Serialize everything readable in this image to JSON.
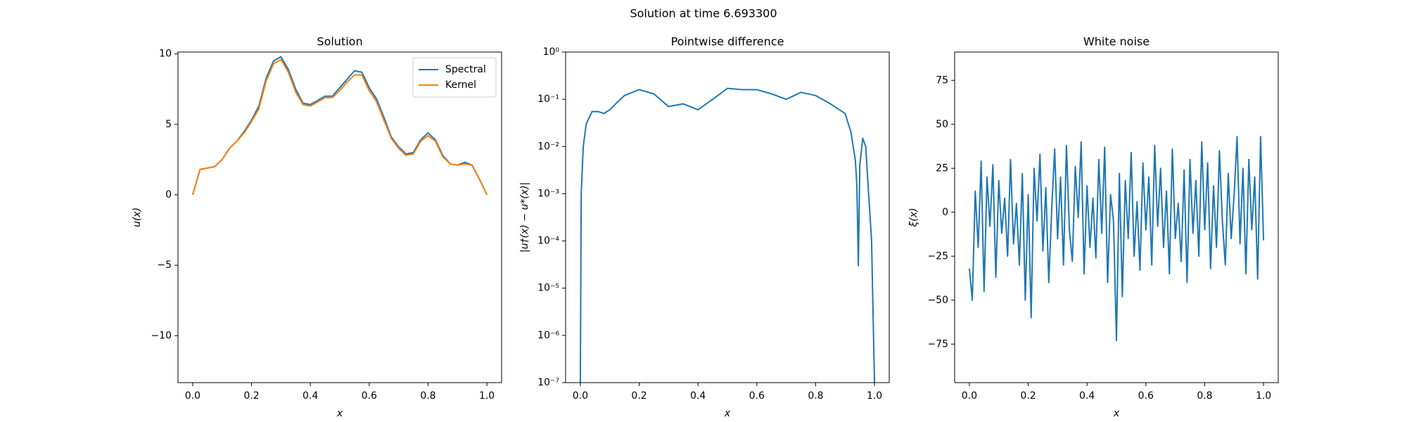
{
  "title": "Solution at time 6.693300",
  "chart_data": [
    {
      "type": "line",
      "title": "Solution",
      "x_label": "x",
      "y_label": "u(x)",
      "x": [
        0,
        0.025,
        0.05,
        0.075,
        0.1,
        0.125,
        0.15,
        0.175,
        0.2,
        0.225,
        0.25,
        0.275,
        0.3,
        0.325,
        0.35,
        0.375,
        0.4,
        0.425,
        0.45,
        0.475,
        0.5,
        0.525,
        0.55,
        0.575,
        0.6,
        0.625,
        0.65,
        0.675,
        0.7,
        0.725,
        0.75,
        0.775,
        0.8,
        0.825,
        0.85,
        0.875,
        0.9,
        0.925,
        0.95,
        0.975,
        1.0
      ],
      "series": [
        {
          "name": "Spectral",
          "color": "#1f77b4",
          "values": [
            0,
            1.8,
            1.9,
            2.0,
            2.5,
            3.3,
            3.8,
            4.5,
            5.3,
            6.3,
            8.3,
            9.5,
            9.8,
            8.9,
            7.5,
            6.5,
            6.4,
            6.7,
            7.0,
            7.0,
            7.6,
            8.2,
            8.8,
            8.7,
            7.6,
            6.8,
            5.5,
            4.1,
            3.4,
            2.9,
            3.0,
            3.9,
            4.4,
            3.9,
            2.8,
            2.2,
            2.1,
            2.3,
            2.1,
            1.1,
            0
          ]
        },
        {
          "name": "Kernel",
          "color": "#ff7f0e",
          "values": [
            0,
            1.8,
            1.9,
            2.0,
            2.5,
            3.3,
            3.8,
            4.4,
            5.2,
            6.1,
            8.1,
            9.3,
            9.6,
            8.7,
            7.3,
            6.4,
            6.3,
            6.6,
            6.9,
            6.9,
            7.4,
            8.0,
            8.5,
            8.5,
            7.4,
            6.6,
            5.3,
            4.0,
            3.3,
            2.8,
            2.9,
            3.8,
            4.2,
            3.8,
            2.7,
            2.2,
            2.1,
            2.2,
            2.1,
            1.1,
            0
          ]
        }
      ],
      "xlim": [
        -0.05,
        1.05
      ],
      "ylim": [
        -13.33,
        10.13
      ],
      "xticks": [
        {
          "value": 0,
          "label": "0.0"
        },
        0.2,
        0.4,
        0.6,
        0.8,
        {
          "value": 1,
          "label": "1.0"
        }
      ],
      "yticks": [
        {
          "value": -10,
          "label": "−10"
        },
        {
          "value": -5,
          "label": "−5"
        },
        0,
        5,
        10
      ],
      "legend": "upper right",
      "grid": false
    },
    {
      "type": "line",
      "title": "Pointwise difference",
      "x_label": "x",
      "y_label": "|u†(x) − u*(x)|",
      "log_y": true,
      "x": [
        0,
        0.003,
        0.01,
        0.02,
        0.04,
        0.06,
        0.08,
        0.1,
        0.12,
        0.15,
        0.2,
        0.25,
        0.3,
        0.35,
        0.4,
        0.45,
        0.5,
        0.55,
        0.6,
        0.65,
        0.7,
        0.75,
        0.8,
        0.85,
        0.9,
        0.92,
        0.935,
        0.94,
        0.945,
        0.95,
        0.96,
        0.97,
        0.98,
        0.99,
        0.995,
        1.0
      ],
      "values": [
        1e-07,
        0.001,
        0.01,
        0.03,
        0.055,
        0.055,
        0.05,
        0.06,
        0.08,
        0.12,
        0.16,
        0.13,
        0.07,
        0.08,
        0.06,
        0.1,
        0.17,
        0.16,
        0.16,
        0.13,
        0.1,
        0.14,
        0.12,
        0.08,
        0.05,
        0.02,
        0.005,
        0.0015,
        3e-05,
        0.004,
        0.015,
        0.01,
        0.001,
        0.0001,
        3e-06,
        1e-07
      ],
      "color": "#1f77b4",
      "xlim": [
        -0.05,
        1.05
      ],
      "ylim": [
        1e-07,
        1
      ],
      "xticks": [
        {
          "value": 0,
          "label": "0.0"
        },
        0.2,
        0.4,
        0.6,
        0.8,
        {
          "value": 1,
          "label": "1.0"
        }
      ],
      "yticks": [
        {
          "value": 1e-07,
          "label": "10⁻⁷"
        },
        {
          "value": 1e-06,
          "label": "10⁻⁶"
        },
        {
          "value": 1e-05,
          "label": "10⁻⁵"
        },
        {
          "value": 0.0001,
          "label": "10⁻⁴"
        },
        {
          "value": 0.001,
          "label": "10⁻³"
        },
        {
          "value": 0.01,
          "label": "10⁻²"
        },
        {
          "value": 0.1,
          "label": "10⁻¹"
        },
        {
          "value": 1,
          "label": "10⁰"
        }
      ],
      "grid": false
    },
    {
      "type": "line",
      "title": "White noise",
      "x_label": "x",
      "y_label": "ξ(x)",
      "x": [
        0,
        0.01,
        0.02,
        0.03,
        0.04,
        0.05,
        0.06,
        0.07,
        0.08,
        0.09,
        0.1,
        0.11,
        0.12,
        0.13,
        0.14,
        0.15,
        0.16,
        0.17,
        0.18,
        0.19,
        0.2,
        0.21,
        0.22,
        0.23,
        0.24,
        0.25,
        0.26,
        0.27,
        0.28,
        0.29,
        0.3,
        0.31,
        0.32,
        0.33,
        0.34,
        0.35,
        0.36,
        0.37,
        0.38,
        0.39,
        0.4,
        0.41,
        0.42,
        0.43,
        0.44,
        0.45,
        0.46,
        0.47,
        0.48,
        0.49,
        0.5,
        0.51,
        0.52,
        0.53,
        0.54,
        0.55,
        0.56,
        0.57,
        0.58,
        0.59,
        0.6,
        0.61,
        0.62,
        0.63,
        0.64,
        0.65,
        0.66,
        0.67,
        0.68,
        0.69,
        0.7,
        0.71,
        0.72,
        0.73,
        0.74,
        0.75,
        0.76,
        0.77,
        0.78,
        0.79,
        0.8,
        0.81,
        0.82,
        0.83,
        0.84,
        0.85,
        0.86,
        0.87,
        0.88,
        0.89,
        0.9,
        0.91,
        0.92,
        0.93,
        0.94,
        0.95,
        0.96,
        0.97,
        0.98,
        0.99,
        1.0
      ],
      "values": [
        -32,
        -50,
        12,
        -20,
        29,
        -45,
        20,
        -8,
        27,
        -37,
        18,
        -12,
        8,
        -25,
        30,
        -18,
        5,
        -30,
        22,
        -50,
        10,
        -60,
        25,
        -5,
        33,
        -22,
        14,
        -40,
        2,
        36,
        -15,
        20,
        -30,
        38,
        -10,
        -28,
        26,
        -3,
        40,
        -35,
        15,
        -20,
        8,
        -26,
        30,
        -12,
        37,
        -40,
        10,
        -5,
        -73,
        22,
        -48,
        18,
        -15,
        34,
        -25,
        6,
        -33,
        28,
        -10,
        20,
        -30,
        38,
        -8,
        25,
        -20,
        12,
        -35,
        36,
        -15,
        5,
        -28,
        24,
        -40,
        30,
        -12,
        18,
        -25,
        40,
        -10,
        28,
        -32,
        15,
        -20,
        35,
        -5,
        -30,
        22,
        -15,
        10,
        43,
        -18,
        25,
        -35,
        30,
        -10,
        20,
        -38,
        43,
        -16
      ],
      "color": "#1f77b4",
      "xlim": [
        -0.05,
        1.05
      ],
      "ylim": [
        -96.9,
        91.1
      ],
      "xticks": [
        {
          "value": 0,
          "label": "0.0"
        },
        0.2,
        0.4,
        0.6,
        0.8,
        {
          "value": 1,
          "label": "1.0"
        }
      ],
      "yticks": [
        {
          "value": -75,
          "label": "−75"
        },
        {
          "value": -50,
          "label": "−50"
        },
        {
          "value": -25,
          "label": "−25"
        },
        0,
        25,
        50,
        75
      ],
      "grid": false
    }
  ]
}
